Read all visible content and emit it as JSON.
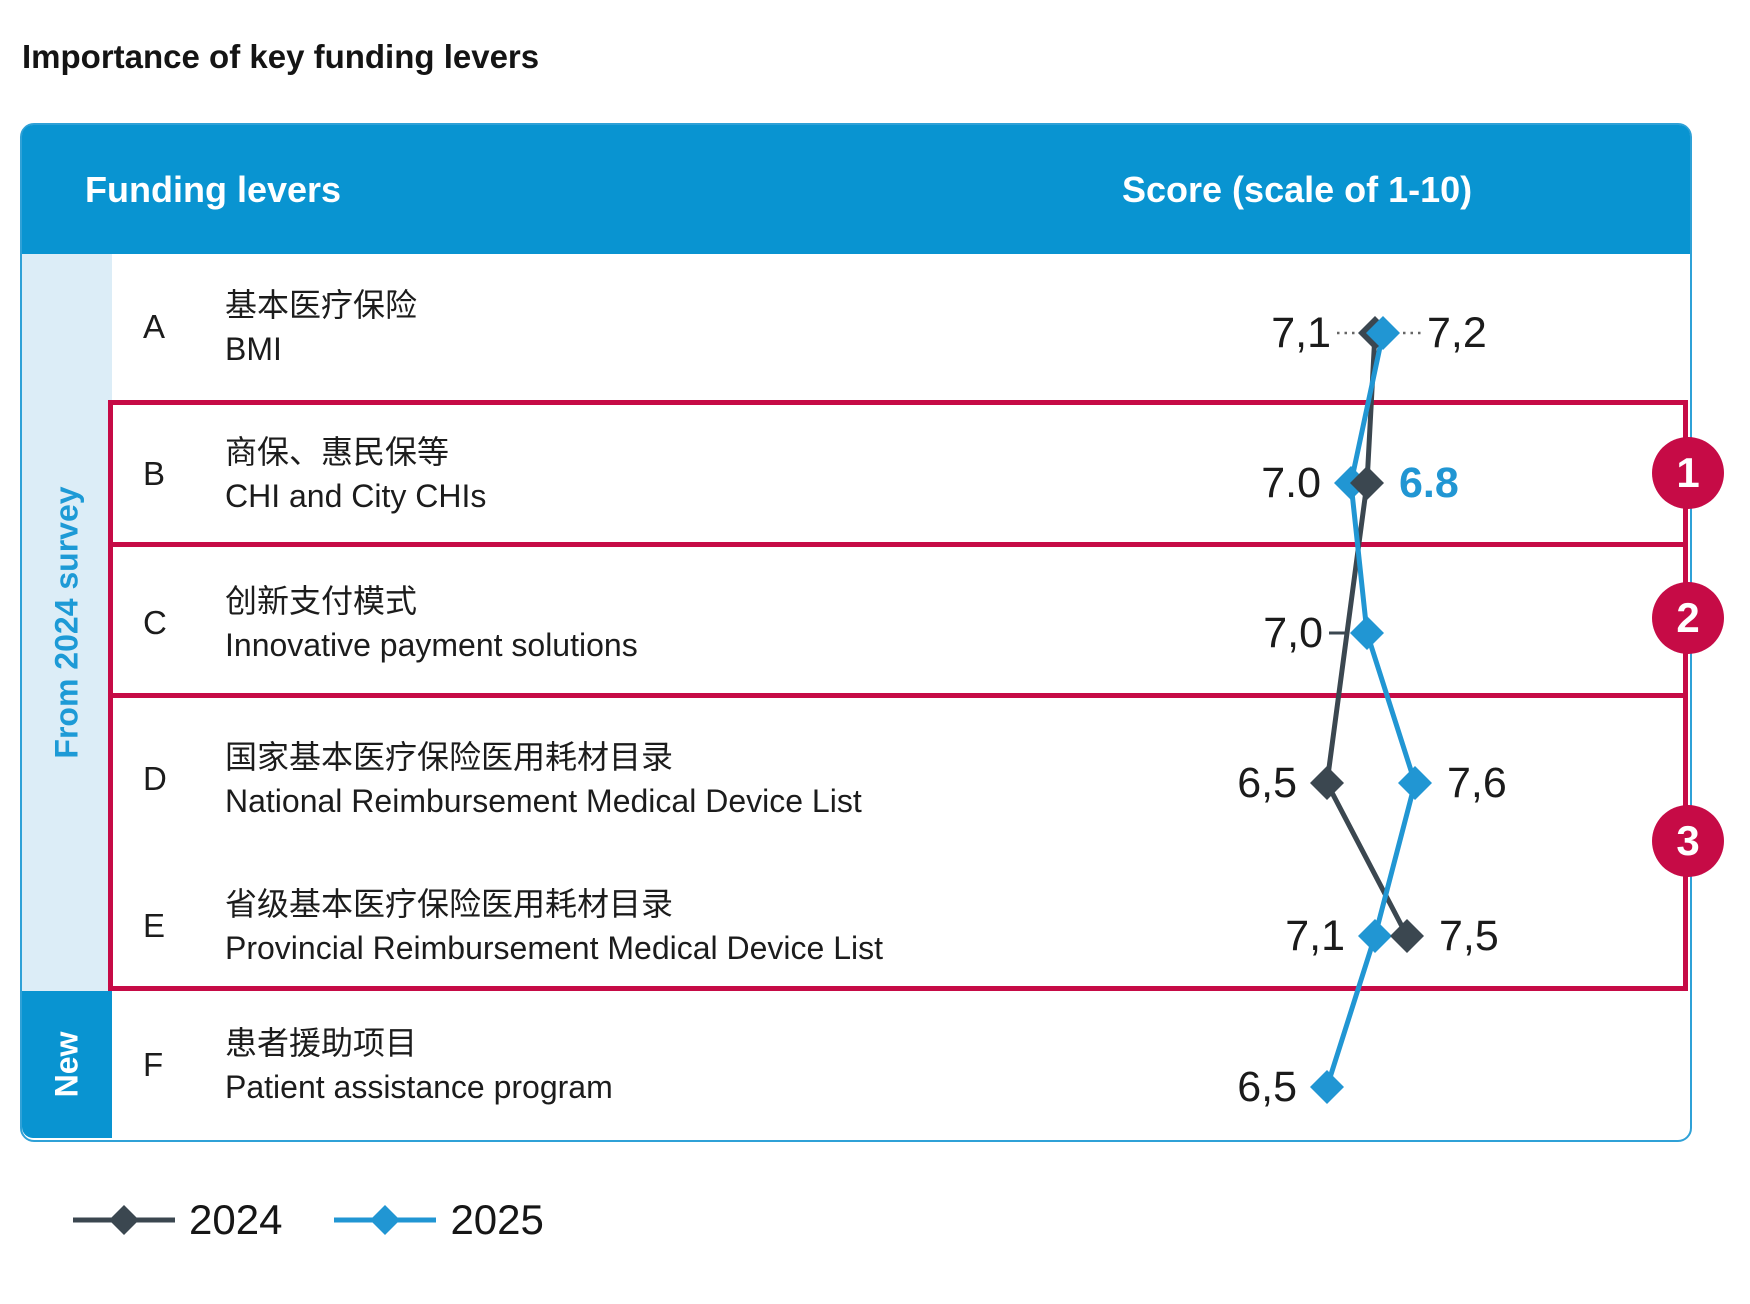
{
  "title": "Importance of key funding levers",
  "header": {
    "col_levers": "Funding levers",
    "col_score": "Score (scale of 1-10)"
  },
  "sidebar": {
    "survey": "From 2024 survey",
    "new": "New"
  },
  "rows": [
    {
      "letter": "A",
      "zh": "基本医疗保险",
      "en": "BMI"
    },
    {
      "letter": "B",
      "zh": "商保、惠民保等",
      "en": "CHI and City CHIs"
    },
    {
      "letter": "C",
      "zh": "创新支付模式",
      "en": "Innovative payment solutions"
    },
    {
      "letter": "D",
      "zh": "国家基本医疗保险医用耗材目录",
      "en": "National Reimbursement Medical Device List"
    },
    {
      "letter": "E",
      "zh": "省级基本医疗保险医用耗材目录",
      "en": "Provincial Reimbursement Medical Device List"
    },
    {
      "letter": "F",
      "zh": "患者援助项目",
      "en": "Patient assistance program"
    }
  ],
  "badges": [
    "1",
    "2",
    "3"
  ],
  "legend": [
    {
      "name": "2024",
      "color": "#3b4750"
    },
    {
      "name": "2025",
      "color": "#2196d3"
    }
  ],
  "colors": {
    "header_bg": "#0994d1",
    "sidebar_bg": "#dcedf7",
    "sidebar_text": "#1d9ad6",
    "accent_red": "#c60b46",
    "series_2024": "#3b4750",
    "series_2025": "#2196d3",
    "label_text": "#1b1b1b",
    "card_border": "#2fa1d7"
  },
  "chart_data": {
    "type": "line",
    "title": "Importance of key funding levers",
    "xlabel": "Score (scale of 1-10)",
    "axis": {
      "min": 1,
      "max": 10
    },
    "categories": [
      "A 基本医疗保险 BMI",
      "B 商保、惠民保等 CHI and City CHIs",
      "C 创新支付模式 Innovative payment solutions",
      "D 国家基本医疗保险医用耗材目录 National Reimbursement Medical Device List",
      "E 省级基本医疗保险医用耗材目录 Provincial Reimbursement Medical Device List",
      "F 患者援助项目 Patient assistance program"
    ],
    "series": [
      {
        "name": "2024",
        "values": [
          7.1,
          7.0,
          null,
          6.5,
          7.5,
          null
        ]
      },
      {
        "name": "2025",
        "values": [
          7.2,
          6.8,
          7.0,
          7.6,
          7.1,
          6.5
        ]
      }
    ],
    "value_labels": [
      [
        {
          "text": "7,1",
          "series": "2024",
          "side": "left",
          "connector": "dotted"
        },
        {
          "text": "7,2",
          "series": "2025",
          "side": "right",
          "connector": "dotted"
        }
      ],
      [
        {
          "text": "7.0",
          "series": "2024",
          "side": "left"
        },
        {
          "text": "6.8",
          "series": "2025",
          "side": "right",
          "emphasis": true
        }
      ],
      [
        {
          "text": "7,0",
          "series": "2025",
          "side": "left",
          "connector": "solid"
        }
      ],
      [
        {
          "text": "6,5",
          "series": "2024",
          "side": "left"
        },
        {
          "text": "7,6",
          "series": "2025",
          "side": "right"
        }
      ],
      [
        {
          "text": "7,1",
          "series": "2025",
          "side": "left"
        },
        {
          "text": "7,5",
          "series": "2024",
          "side": "right"
        }
      ],
      [
        {
          "text": "6,5",
          "series": "2025",
          "side": "left"
        }
      ]
    ],
    "highlight_groups": [
      {
        "badge": "1",
        "rows": [
          "B"
        ]
      },
      {
        "badge": "2",
        "rows": [
          "C"
        ]
      },
      {
        "badge": "3",
        "rows": [
          "D",
          "E"
        ]
      }
    ]
  }
}
